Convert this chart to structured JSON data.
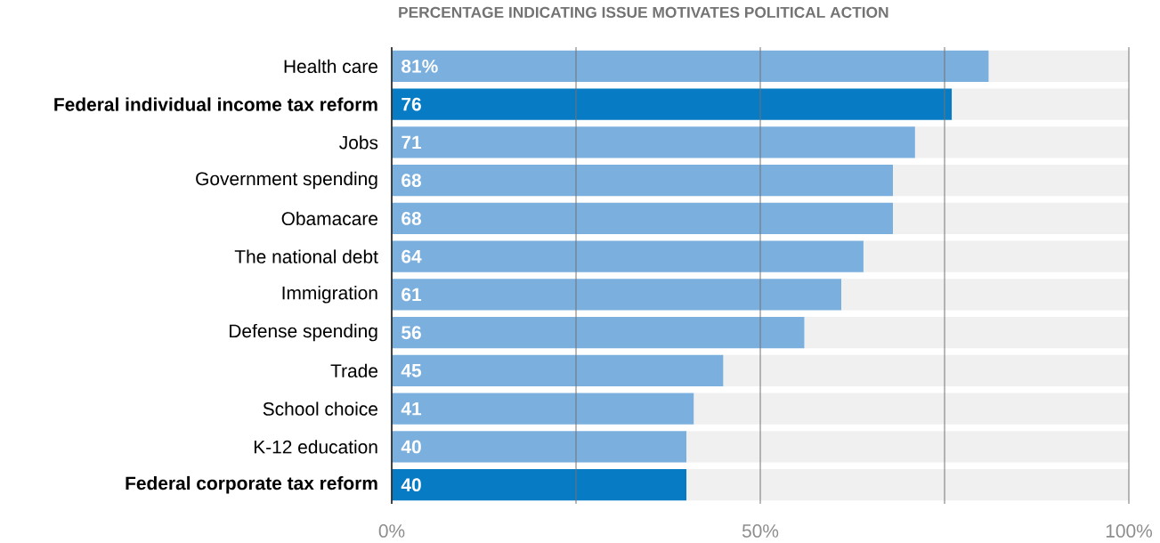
{
  "chart_data": {
    "type": "bar",
    "orientation": "horizontal",
    "stacked": true,
    "title": "PERCENTAGE INDICATING ISSUE MOTIVATES POLITICAL ACTION",
    "categories": [
      "Health care",
      "**Federal individual income tax reform**",
      "Jobs",
      "Government spending",
      "Obamacare",
      "The national debt",
      "Immigration",
      "Defense spending",
      "Trade",
      "School choice",
      "K-12 education",
      "**Federal corporate tax reform**"
    ],
    "series": [
      {
        "values": [
          81,
          76,
          71,
          68,
          68,
          64,
          61,
          56,
          45,
          41,
          40,
          40
        ],
        "colors": [
          "#7aafde",
          "#077cc5",
          "#7aafde",
          "#7aafde",
          "#7aafde",
          "#7aafde",
          "#7aafde",
          "#7aafde",
          "#7aafde",
          "#7aafde",
          "#7aafde",
          "#077cc5"
        ],
        "value_labels": [
          "81%",
          "76",
          "71",
          "68",
          "68",
          "64",
          "61",
          "56",
          "45",
          "41",
          "40",
          "40"
        ]
      },
      {
        "values": [
          19,
          24,
          29,
          32,
          32,
          36,
          39,
          44,
          55,
          59,
          60,
          60
        ],
        "color": "#f0f0f0"
      }
    ],
    "xlim": [
      0,
      100
    ],
    "xticks": [
      {
        "value": 0,
        "label": "0%"
      },
      {
        "value": 25,
        "label": null
      },
      {
        "value": 50,
        "label": "50%"
      },
      {
        "value": 75,
        "label": null
      },
      {
        "value": 100,
        "label": "100%"
      }
    ],
    "grid": "x"
  }
}
